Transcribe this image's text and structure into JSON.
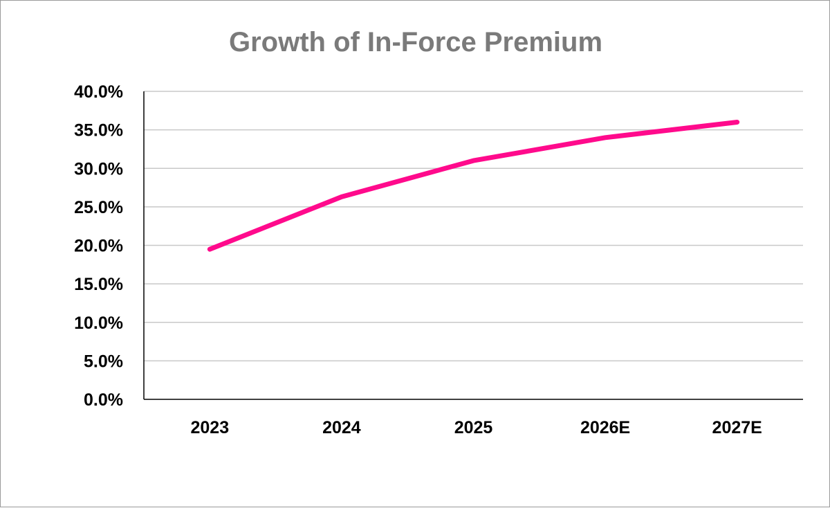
{
  "chart_data": {
    "type": "line",
    "title": "Growth of In-Force Premium",
    "categories": [
      "2023",
      "2024",
      "2025",
      "2026E",
      "2027E"
    ],
    "series": [
      {
        "name": "Growth of In-Force Premium",
        "values": [
          19.5,
          26.3,
          31.0,
          34.0,
          36.0
        ],
        "color": "#ff0a8c"
      }
    ],
    "xlabel": "",
    "ylabel": "",
    "ylim": [
      0,
      40
    ],
    "ytick_step": 5,
    "ytick_labels": [
      "0.0%",
      "5.0%",
      "10.0%",
      "15.0%",
      "20.0%",
      "25.0%",
      "30.0%",
      "35.0%",
      "40.0%"
    ],
    "grid": true,
    "legend": "none"
  }
}
